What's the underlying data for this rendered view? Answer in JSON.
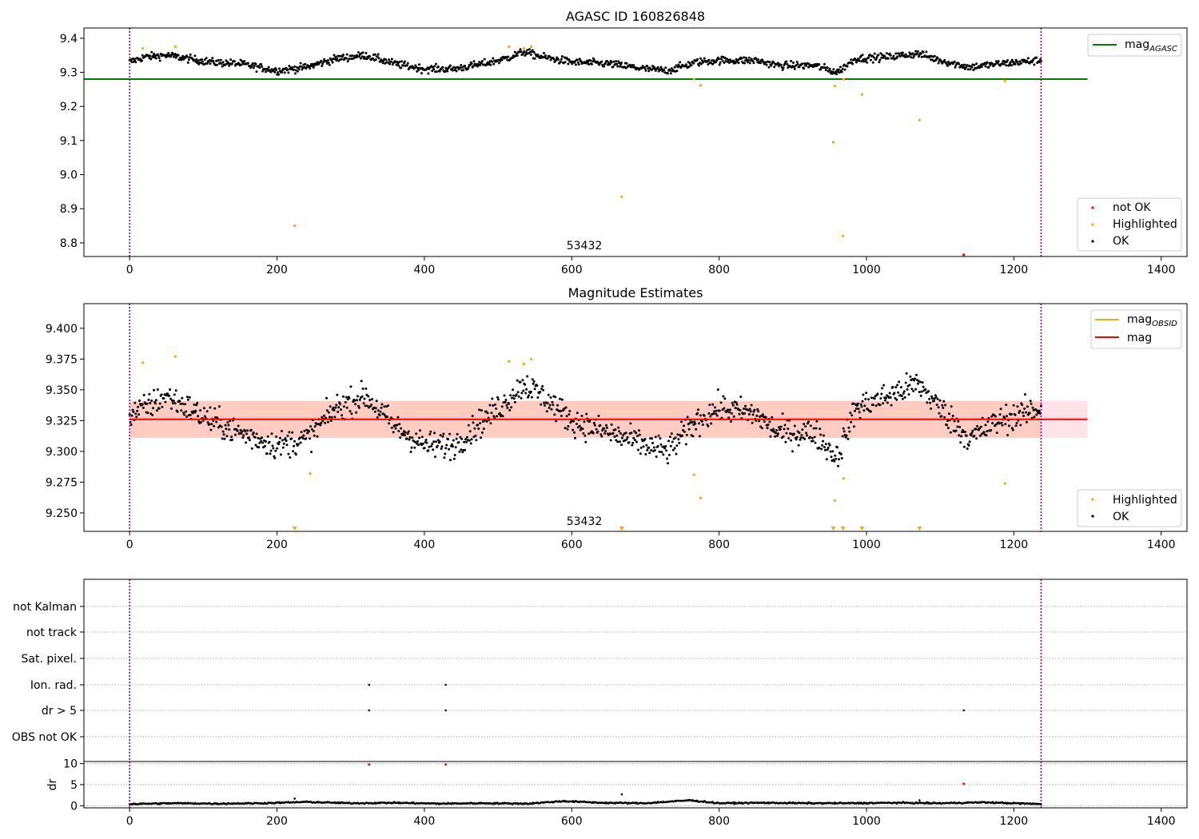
{
  "colors": {
    "ok": "#000000",
    "highlighted": "#ffa500",
    "not_ok": "#ff0000",
    "mag_agasc": "#008000",
    "mag_obsid": "#ffa500",
    "mag": "#ff0000",
    "obs_boundary": "#800080"
  },
  "chart_data": [
    {
      "type": "scatter",
      "title": "AGASC ID 160826848",
      "xlim": [
        -62,
        1435
      ],
      "ylim": [
        8.76,
        9.43
      ],
      "xticks": [
        "0",
        "200",
        "400",
        "600",
        "800",
        "1000",
        "1200",
        "1400"
      ],
      "xtick_values": [
        0,
        200,
        400,
        600,
        800,
        1000,
        1200,
        1400
      ],
      "yticks": [
        "8.8",
        "8.9",
        "9.0",
        "9.1",
        "9.2",
        "9.3",
        "9.4"
      ],
      "ytick_values": [
        8.8,
        8.9,
        9.0,
        9.1,
        9.2,
        9.3,
        9.4
      ],
      "obs_boundaries": [
        0,
        1237
      ],
      "annotation": {
        "text": "53432",
        "x": 618,
        "y": 8.765
      },
      "mag_agasc": {
        "value": 9.28,
        "x_range": [
          -62,
          1300
        ]
      },
      "ok_trend": [
        [
          0,
          9.33
        ],
        [
          20,
          9.345
        ],
        [
          50,
          9.35
        ],
        [
          80,
          9.34
        ],
        [
          110,
          9.33
        ],
        [
          150,
          9.325
        ],
        [
          200,
          9.305
        ],
        [
          240,
          9.315
        ],
        [
          280,
          9.34
        ],
        [
          320,
          9.35
        ],
        [
          360,
          9.325
        ],
        [
          400,
          9.31
        ],
        [
          440,
          9.31
        ],
        [
          480,
          9.325
        ],
        [
          510,
          9.34
        ],
        [
          535,
          9.36
        ],
        [
          560,
          9.345
        ],
        [
          600,
          9.33
        ],
        [
          650,
          9.325
        ],
        [
          700,
          9.31
        ],
        [
          730,
          9.305
        ],
        [
          770,
          9.33
        ],
        [
          800,
          9.335
        ],
        [
          850,
          9.335
        ],
        [
          880,
          9.32
        ],
        [
          930,
          9.32
        ],
        [
          960,
          9.3
        ],
        [
          985,
          9.34
        ],
        [
          1030,
          9.345
        ],
        [
          1070,
          9.355
        ],
        [
          1100,
          9.335
        ],
        [
          1140,
          9.315
        ],
        [
          1180,
          9.325
        ],
        [
          1237,
          9.335
        ]
      ],
      "highlighted": [
        [
          18,
          9.37
        ],
        [
          62,
          9.375
        ],
        [
          224,
          8.85
        ],
        [
          515,
          9.375
        ],
        [
          535,
          9.37
        ],
        [
          545,
          9.375
        ],
        [
          668,
          8.935
        ],
        [
          766,
          9.28
        ],
        [
          775,
          9.262
        ],
        [
          955,
          9.095
        ],
        [
          957,
          9.26
        ],
        [
          968,
          8.82
        ],
        [
          969,
          9.28
        ],
        [
          994,
          9.235
        ],
        [
          1072,
          9.16
        ],
        [
          1188,
          9.275
        ]
      ],
      "not_ok": [
        [
          1132,
          8.765
        ]
      ],
      "legends": [
        {
          "position": "top-right",
          "entries": [
            {
              "label": "mag",
              "sub": "AGASC"
            }
          ]
        },
        {
          "position": "lower-right",
          "entries": [
            {
              "label": "not OK"
            },
            {
              "label": "Highlighted"
            },
            {
              "label": "OK"
            }
          ]
        }
      ]
    },
    {
      "type": "scatter",
      "title": "Magnitude Estimates",
      "xlim": [
        -62,
        1435
      ],
      "ylim": [
        9.235,
        9.42
      ],
      "xticks": [
        "0",
        "200",
        "400",
        "600",
        "800",
        "1000",
        "1200",
        "1400"
      ],
      "xtick_values": [
        0,
        200,
        400,
        600,
        800,
        1000,
        1200,
        1400
      ],
      "yticks": [
        "9.250",
        "9.275",
        "9.300",
        "9.325",
        "9.350",
        "9.375",
        "9.400"
      ],
      "ytick_values": [
        9.25,
        9.275,
        9.3,
        9.325,
        9.35,
        9.375,
        9.4
      ],
      "obs_boundaries": [
        0,
        1237
      ],
      "annotation": {
        "text": "53432",
        "x": 618,
        "y": 9.239
      },
      "mag": {
        "value": 9.326,
        "band": [
          9.311,
          9.341
        ],
        "x_range": [
          0,
          1300
        ]
      },
      "mag_obsid": {
        "value": 9.326,
        "band": [
          9.311,
          9.341
        ],
        "x_range": [
          0,
          1237
        ]
      },
      "ok_trend": [
        [
          0,
          9.33
        ],
        [
          20,
          9.335
        ],
        [
          50,
          9.345
        ],
        [
          80,
          9.335
        ],
        [
          110,
          9.325
        ],
        [
          150,
          9.315
        ],
        [
          200,
          9.305
        ],
        [
          240,
          9.31
        ],
        [
          280,
          9.335
        ],
        [
          320,
          9.345
        ],
        [
          360,
          9.32
        ],
        [
          400,
          9.305
        ],
        [
          440,
          9.305
        ],
        [
          480,
          9.325
        ],
        [
          510,
          9.34
        ],
        [
          535,
          9.355
        ],
        [
          560,
          9.345
        ],
        [
          600,
          9.325
        ],
        [
          650,
          9.315
        ],
        [
          700,
          9.305
        ],
        [
          730,
          9.3
        ],
        [
          770,
          9.325
        ],
        [
          800,
          9.335
        ],
        [
          850,
          9.33
        ],
        [
          880,
          9.315
        ],
        [
          930,
          9.315
        ],
        [
          960,
          9.295
        ],
        [
          985,
          9.335
        ],
        [
          1030,
          9.345
        ],
        [
          1070,
          9.355
        ],
        [
          1100,
          9.335
        ],
        [
          1140,
          9.31
        ],
        [
          1180,
          9.325
        ],
        [
          1237,
          9.335
        ]
      ],
      "highlighted": [
        [
          18,
          9.372
        ],
        [
          62,
          9.377
        ],
        [
          245,
          9.282
        ],
        [
          515,
          9.373
        ],
        [
          535,
          9.371
        ],
        [
          545,
          9.375
        ],
        [
          766,
          9.281
        ],
        [
          775,
          9.262
        ],
        [
          957,
          9.26
        ],
        [
          969,
          9.278
        ],
        [
          1188,
          9.274
        ]
      ],
      "clipped_markers": [
        224,
        668,
        955,
        968,
        994,
        1072
      ],
      "legends": [
        {
          "position": "top-right",
          "entries": [
            {
              "label": "mag",
              "sub": "OBSID"
            },
            {
              "label": "mag"
            }
          ]
        },
        {
          "position": "lower-right",
          "entries": [
            {
              "label": "Highlighted"
            },
            {
              "label": "OK"
            }
          ]
        }
      ]
    },
    {
      "type": "scatter",
      "title": "",
      "xlim": [
        -62,
        1435
      ],
      "obs_boundaries": [
        0,
        1237
      ],
      "flag_rows": [
        "not Kalman",
        "not track",
        "Sat. pixel.",
        "Ion. rad.",
        "dr > 5",
        "OBS not OK"
      ],
      "flag_points": [
        {
          "flag": "Ion. rad.",
          "x": [
            325,
            429
          ]
        },
        {
          "flag": "dr > 5",
          "x": [
            325,
            429,
            1132
          ]
        }
      ]
    },
    {
      "type": "scatter",
      "title": "",
      "ylabel": "dr",
      "xlim": [
        -62,
        1435
      ],
      "ylim": [
        -0.5,
        10.5
      ],
      "xticks": [
        "0",
        "200",
        "400",
        "600",
        "800",
        "1000",
        "1200",
        "1400"
      ],
      "xtick_values": [
        0,
        200,
        400,
        600,
        800,
        1000,
        1200,
        1400
      ],
      "yticks": [
        "0",
        "5",
        "10"
      ],
      "ytick_values": [
        0,
        5,
        10
      ],
      "obs_boundaries": [
        0,
        1237
      ],
      "ok_trend": [
        [
          0,
          0.4
        ],
        [
          60,
          0.6
        ],
        [
          120,
          0.5
        ],
        [
          180,
          0.6
        ],
        [
          240,
          0.9
        ],
        [
          300,
          0.6
        ],
        [
          360,
          0.7
        ],
        [
          420,
          0.5
        ],
        [
          480,
          0.6
        ],
        [
          540,
          0.5
        ],
        [
          590,
          1.1
        ],
        [
          640,
          0.7
        ],
        [
          700,
          0.6
        ],
        [
          760,
          1.3
        ],
        [
          800,
          0.6
        ],
        [
          860,
          0.7
        ],
        [
          920,
          0.6
        ],
        [
          980,
          0.6
        ],
        [
          1040,
          0.7
        ],
        [
          1100,
          0.6
        ],
        [
          1160,
          0.8
        ],
        [
          1237,
          0.4
        ]
      ],
      "outliers": [
        [
          224,
          1.7
        ],
        [
          668,
          2.7
        ],
        [
          1072,
          1.3
        ]
      ],
      "not_ok": [
        [
          325,
          9.8
        ],
        [
          429,
          9.8
        ],
        [
          1132,
          5.2
        ]
      ]
    }
  ]
}
